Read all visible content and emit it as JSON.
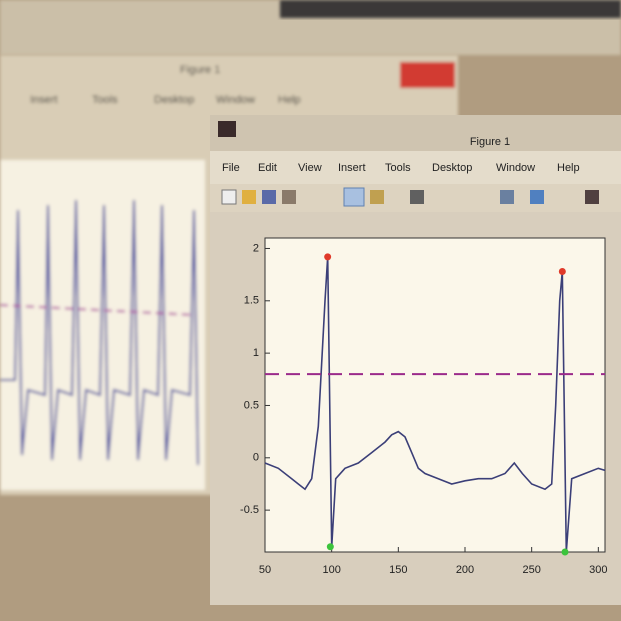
{
  "back_window": {
    "title": "Figure 1",
    "menu": [
      "Insert",
      "Tools",
      "Desktop",
      "Window",
      "Help"
    ]
  },
  "front_window": {
    "title": "Figure 1",
    "menu": [
      "File",
      "Edit",
      "View",
      "Insert",
      "Tools",
      "Desktop",
      "Window",
      "Help"
    ]
  },
  "chart_data": {
    "type": "line",
    "x": [
      50,
      60,
      70,
      75,
      80,
      85,
      90,
      95,
      97,
      100,
      103,
      110,
      120,
      130,
      140,
      145,
      150,
      155,
      160,
      165,
      170,
      180,
      190,
      200,
      210,
      220,
      230,
      237,
      243,
      250,
      260,
      265,
      268,
      271,
      273,
      276,
      280,
      290,
      300,
      305
    ],
    "series": [
      {
        "color": "#3b3f78",
        "values": [
          -0.05,
          -0.1,
          -0.2,
          -0.25,
          -0.3,
          -0.2,
          0.3,
          1.5,
          1.92,
          -0.85,
          -0.2,
          -0.1,
          -0.05,
          0.05,
          0.15,
          0.22,
          0.25,
          0.2,
          0.05,
          -0.1,
          -0.15,
          -0.2,
          -0.25,
          -0.22,
          -0.2,
          -0.2,
          -0.15,
          -0.05,
          -0.15,
          -0.25,
          -0.3,
          -0.25,
          0.5,
          1.5,
          1.78,
          -0.9,
          -0.2,
          -0.15,
          -0.1,
          -0.12
        ]
      }
    ],
    "threshold": {
      "value": 0.8,
      "color": "#9a2a8a",
      "dashed": true
    },
    "peaks": {
      "x": [
        97,
        273
      ],
      "values": [
        1.92,
        1.78
      ],
      "color": "#e03a2a"
    },
    "troughs": {
      "x": [
        99,
        275
      ],
      "values": [
        -0.85,
        -0.9
      ],
      "color": "#3cc43c"
    },
    "xlim": [
      50,
      305
    ],
    "ylim": [
      -0.9,
      2.1
    ],
    "xticks": [
      50,
      100,
      150,
      200,
      250,
      300
    ],
    "yticks": [
      -0.5,
      0,
      0.5,
      1,
      1.5,
      2
    ]
  }
}
